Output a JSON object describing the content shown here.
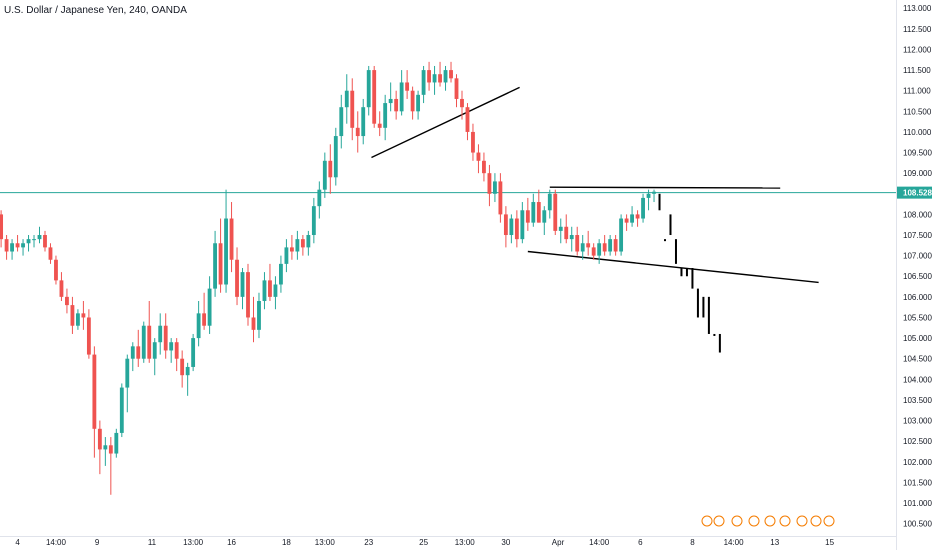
{
  "header": {
    "title": "U.S. Dollar / Japanese Yen, 240, OANDA"
  },
  "colors": {
    "up": "#26a69a",
    "down": "#ef5350",
    "projection": "#000000",
    "trendline": "#000000",
    "last_price_line": "#26a69a",
    "axis_text": "#131722",
    "grid_border": "#e0e3eb"
  },
  "chart_data": {
    "type": "candlestick",
    "symbol": "U.S. Dollar / Japanese Yen",
    "interval": "240",
    "source": "OANDA",
    "ylim": [
      100.2,
      113.2
    ],
    "y_ticks": [
      100.5,
      101.0,
      101.5,
      102.0,
      102.5,
      103.0,
      103.5,
      104.0,
      104.5,
      105.0,
      105.5,
      106.0,
      106.5,
      107.0,
      107.5,
      108.0,
      108.5,
      109.0,
      109.5,
      110.0,
      110.5,
      111.0,
      111.5,
      112.0,
      112.5,
      113.0
    ],
    "y_tick_labels": [
      "100.500",
      "101.000",
      "101.500",
      "102.000",
      "102.500",
      "103.000",
      "103.500",
      "104.000",
      "104.500",
      "105.000",
      "105.500",
      "106.000",
      "106.500",
      "107.000",
      "107.500",
      "108.000",
      "108.500",
      "109.000",
      "109.500",
      "110.000",
      "110.500",
      "111.000",
      "111.500",
      "112.000",
      "112.500",
      "113.000"
    ],
    "last_price": 108.528,
    "last_price_label": "108.528",
    "x_ticks": [
      {
        "label": "4",
        "bar": 3
      },
      {
        "label": "14:00",
        "bar": 10
      },
      {
        "label": "9",
        "bar": 17.5
      },
      {
        "label": "11",
        "bar": 27.5
      },
      {
        "label": "13:00",
        "bar": 35
      },
      {
        "label": "16",
        "bar": 42
      },
      {
        "label": "18",
        "bar": 52
      },
      {
        "label": "13:00",
        "bar": 59
      },
      {
        "label": "23",
        "bar": 67
      },
      {
        "label": "25",
        "bar": 77
      },
      {
        "label": "13:00",
        "bar": 84.5
      },
      {
        "label": "30",
        "bar": 92
      },
      {
        "label": "Apr",
        "bar": 101.5
      },
      {
        "label": "14:00",
        "bar": 109
      },
      {
        "label": "6",
        "bar": 116.5
      },
      {
        "label": "8",
        "bar": 126
      },
      {
        "label": "14:00",
        "bar": 133.5
      },
      {
        "label": "13",
        "bar": 141
      },
      {
        "label": "15",
        "bar": 151
      }
    ],
    "candles": [
      [
        108.0,
        108.1,
        107.2,
        107.4
      ],
      [
        107.4,
        107.5,
        106.9,
        107.1
      ],
      [
        107.1,
        107.4,
        106.9,
        107.3
      ],
      [
        107.3,
        107.5,
        107.1,
        107.2
      ],
      [
        107.2,
        107.4,
        107.0,
        107.3
      ],
      [
        107.3,
        107.5,
        107.1,
        107.4
      ],
      [
        107.4,
        107.5,
        107.2,
        107.4
      ],
      [
        107.4,
        107.7,
        107.3,
        107.5
      ],
      [
        107.5,
        107.6,
        107.1,
        107.2
      ],
      [
        107.2,
        107.3,
        106.8,
        106.9
      ],
      [
        106.9,
        107.0,
        106.3,
        106.4
      ],
      [
        106.4,
        106.6,
        105.9,
        106.0
      ],
      [
        106.0,
        106.2,
        105.6,
        105.8
      ],
      [
        105.8,
        106.0,
        105.1,
        105.3
      ],
      [
        105.3,
        105.7,
        105.2,
        105.6
      ],
      [
        105.6,
        105.9,
        105.2,
        105.5
      ],
      [
        105.5,
        105.7,
        104.5,
        104.6
      ],
      [
        104.6,
        104.8,
        102.1,
        102.8
      ],
      [
        102.8,
        103.0,
        101.7,
        102.3
      ],
      [
        102.3,
        102.6,
        101.9,
        102.4
      ],
      [
        102.4,
        102.6,
        101.2,
        102.2
      ],
      [
        102.2,
        102.8,
        102.1,
        102.7
      ],
      [
        102.7,
        103.9,
        102.6,
        103.8
      ],
      [
        103.8,
        104.6,
        103.2,
        104.5
      ],
      [
        104.5,
        104.9,
        104.2,
        104.8
      ],
      [
        104.8,
        105.2,
        104.3,
        104.5
      ],
      [
        104.5,
        105.4,
        104.4,
        105.3
      ],
      [
        105.3,
        105.9,
        104.4,
        104.5
      ],
      [
        104.5,
        105.0,
        104.1,
        104.9
      ],
      [
        104.9,
        105.6,
        104.6,
        105.3
      ],
      [
        105.3,
        105.6,
        104.5,
        104.7
      ],
      [
        104.7,
        105.0,
        104.4,
        104.9
      ],
      [
        104.9,
        105.0,
        104.2,
        104.5
      ],
      [
        104.5,
        104.7,
        103.8,
        104.1
      ],
      [
        104.1,
        104.4,
        103.6,
        104.3
      ],
      [
        104.3,
        105.1,
        104.2,
        105.0
      ],
      [
        105.0,
        105.9,
        104.8,
        105.6
      ],
      [
        105.6,
        106.1,
        105.2,
        105.3
      ],
      [
        105.3,
        106.5,
        105.1,
        106.2
      ],
      [
        106.2,
        107.6,
        106.0,
        107.3
      ],
      [
        107.3,
        107.9,
        106.1,
        106.3
      ],
      [
        106.3,
        108.6,
        106.1,
        107.9
      ],
      [
        107.9,
        108.3,
        106.6,
        106.9
      ],
      [
        106.9,
        107.2,
        105.8,
        106.0
      ],
      [
        106.0,
        106.7,
        105.7,
        106.6
      ],
      [
        106.6,
        106.8,
        105.3,
        105.5
      ],
      [
        105.5,
        106.0,
        104.9,
        105.2
      ],
      [
        105.2,
        106.1,
        105.0,
        105.9
      ],
      [
        105.9,
        106.6,
        105.7,
        106.4
      ],
      [
        106.4,
        106.8,
        105.9,
        106.0
      ],
      [
        106.0,
        106.5,
        105.7,
        106.3
      ],
      [
        106.3,
        107.0,
        106.1,
        106.8
      ],
      [
        106.8,
        107.4,
        106.6,
        107.2
      ],
      [
        107.2,
        107.5,
        106.9,
        107.1
      ],
      [
        107.1,
        107.6,
        106.9,
        107.4
      ],
      [
        107.4,
        107.5,
        107.0,
        107.2
      ],
      [
        107.2,
        107.6,
        107.0,
        107.5
      ],
      [
        107.5,
        108.4,
        107.3,
        108.2
      ],
      [
        108.2,
        108.8,
        107.9,
        108.6
      ],
      [
        108.6,
        109.5,
        108.4,
        109.3
      ],
      [
        109.3,
        109.7,
        108.5,
        108.9
      ],
      [
        108.9,
        110.1,
        108.7,
        109.9
      ],
      [
        109.9,
        110.9,
        109.6,
        110.6
      ],
      [
        110.6,
        111.4,
        110.2,
        111.0
      ],
      [
        111.0,
        111.3,
        109.8,
        110.1
      ],
      [
        110.1,
        110.5,
        109.5,
        109.9
      ],
      [
        109.9,
        110.8,
        109.7,
        110.6
      ],
      [
        110.6,
        111.6,
        110.4,
        111.5
      ],
      [
        111.5,
        111.6,
        110.1,
        110.2
      ],
      [
        110.2,
        110.5,
        109.9,
        110.1
      ],
      [
        110.1,
        110.9,
        109.8,
        110.7
      ],
      [
        110.7,
        111.2,
        110.5,
        110.8
      ],
      [
        110.8,
        111.0,
        110.3,
        110.5
      ],
      [
        110.5,
        111.5,
        110.4,
        111.2
      ],
      [
        111.2,
        111.5,
        110.8,
        111.0
      ],
      [
        111.0,
        111.1,
        110.3,
        110.5
      ],
      [
        110.5,
        111.0,
        110.3,
        110.9
      ],
      [
        110.9,
        111.6,
        110.7,
        111.5
      ],
      [
        111.5,
        111.7,
        111.0,
        111.2
      ],
      [
        111.2,
        111.6,
        110.9,
        111.4
      ],
      [
        111.4,
        111.7,
        111.1,
        111.2
      ],
      [
        111.2,
        111.6,
        111.0,
        111.5
      ],
      [
        111.5,
        111.7,
        111.2,
        111.3
      ],
      [
        111.3,
        111.4,
        110.6,
        110.8
      ],
      [
        110.8,
        111.0,
        110.3,
        110.6
      ],
      [
        110.6,
        110.7,
        109.8,
        110.0
      ],
      [
        110.0,
        110.2,
        109.3,
        109.5
      ],
      [
        109.5,
        109.7,
        109.0,
        109.3
      ],
      [
        109.3,
        109.5,
        108.8,
        109.0
      ],
      [
        109.0,
        109.2,
        108.2,
        108.5
      ],
      [
        108.5,
        109.0,
        108.3,
        108.8
      ],
      [
        108.8,
        109.0,
        107.8,
        108.0
      ],
      [
        108.0,
        108.2,
        107.2,
        107.5
      ],
      [
        107.5,
        108.0,
        107.3,
        107.9
      ],
      [
        107.9,
        108.1,
        107.2,
        107.4
      ],
      [
        107.4,
        108.3,
        107.3,
        108.1
      ],
      [
        108.1,
        108.4,
        107.6,
        107.8
      ],
      [
        107.8,
        108.5,
        107.7,
        108.3
      ],
      [
        108.3,
        108.6,
        107.8,
        107.8
      ],
      [
        107.8,
        108.2,
        107.5,
        108.1
      ],
      [
        108.1,
        108.6,
        107.9,
        108.5
      ],
      [
        108.5,
        108.6,
        107.5,
        107.6
      ],
      [
        107.6,
        107.9,
        107.3,
        107.7
      ],
      [
        107.7,
        108.0,
        107.3,
        107.4
      ],
      [
        107.4,
        107.7,
        107.1,
        107.5
      ],
      [
        107.5,
        107.7,
        107.0,
        107.1
      ],
      [
        107.1,
        107.5,
        106.9,
        107.3
      ],
      [
        107.3,
        107.6,
        107.0,
        107.2
      ],
      [
        107.2,
        107.3,
        106.9,
        107.0
      ],
      [
        107.0,
        107.4,
        106.8,
        107.3
      ],
      [
        107.3,
        107.5,
        107.0,
        107.1
      ],
      [
        107.1,
        107.5,
        107.0,
        107.4
      ],
      [
        107.4,
        107.5,
        107.0,
        107.1
      ],
      [
        107.1,
        108.0,
        107.0,
        107.9
      ],
      [
        107.9,
        108.0,
        107.6,
        107.8
      ],
      [
        107.8,
        108.2,
        107.7,
        108.0
      ],
      [
        108.0,
        108.1,
        107.7,
        107.9
      ],
      [
        107.9,
        108.5,
        107.8,
        108.4
      ],
      [
        108.4,
        108.6,
        108.1,
        108.5
      ],
      [
        108.5,
        108.6,
        108.3,
        108.55
      ]
    ],
    "projection": [
      {
        "bar": 120,
        "high": 108.5,
        "low": 108.1
      },
      {
        "bar": 121,
        "high": 107.4,
        "low": 107.4
      },
      {
        "bar": 122,
        "high": 108.0,
        "low": 107.5
      },
      {
        "bar": 123,
        "high": 107.4,
        "low": 106.8
      },
      {
        "bar": 124,
        "high": 106.7,
        "low": 106.5
      },
      {
        "bar": 125,
        "high": 106.7,
        "low": 106.5
      },
      {
        "bar": 126,
        "high": 106.7,
        "low": 106.2
      },
      {
        "bar": 127,
        "high": 106.2,
        "low": 105.5
      },
      {
        "bar": 128,
        "high": 106.0,
        "low": 105.5
      },
      {
        "bar": 129,
        "high": 106.0,
        "low": 105.1
      },
      {
        "bar": 130,
        "high": 105.1,
        "low": 105.1
      },
      {
        "bar": 131,
        "high": 105.1,
        "low": 104.65
      }
    ],
    "trendlines": [
      {
        "x1": 67.5,
        "y1": 109.38,
        "x2": 94.5,
        "y2": 111.08
      },
      {
        "x1": 100,
        "y1": 108.66,
        "x2": 142,
        "y2": 108.64
      },
      {
        "x1": 96,
        "y1": 107.1,
        "x2": 149,
        "y2": 106.35
      }
    ],
    "x_view": {
      "bar_min": -0.2,
      "bar_max": 163.1
    }
  }
}
